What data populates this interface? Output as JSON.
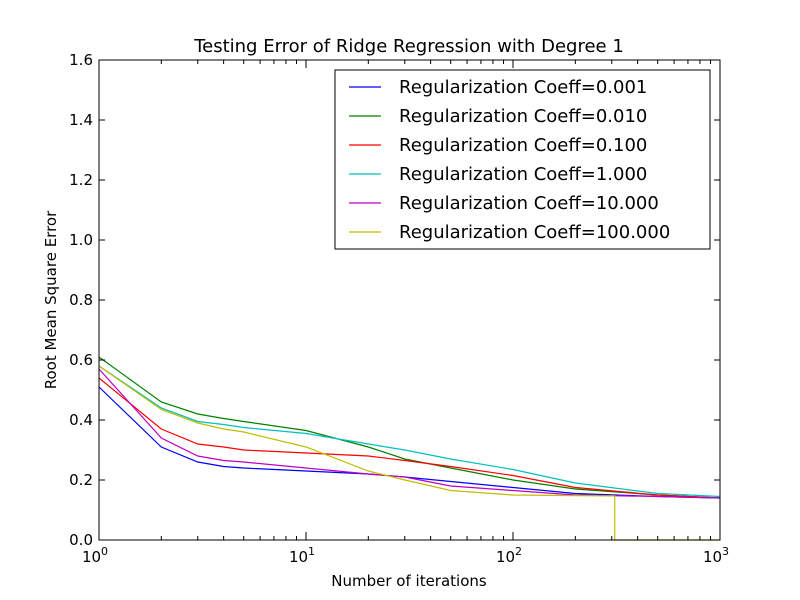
{
  "chart_data": {
    "type": "line",
    "title": "Testing Error of Ridge Regression with Degree 1",
    "xlabel": "Number of iterations",
    "ylabel": "Root Mean Square Error",
    "xscale": "log",
    "xlim": [
      1,
      1000
    ],
    "ylim": [
      0.0,
      1.6
    ],
    "x_ticks": [
      {
        "value": 1,
        "base": "10",
        "exp": "0"
      },
      {
        "value": 10,
        "base": "10",
        "exp": "1"
      },
      {
        "value": 100,
        "base": "10",
        "exp": "2"
      },
      {
        "value": 1000,
        "base": "10",
        "exp": "3"
      }
    ],
    "y_ticks": [
      {
        "value": 0.0,
        "label": "0.0"
      },
      {
        "value": 0.2,
        "label": "0.2"
      },
      {
        "value": 0.4,
        "label": "0.4"
      },
      {
        "value": 0.6,
        "label": "0.6"
      },
      {
        "value": 0.8,
        "label": "0.8"
      },
      {
        "value": 1.0,
        "label": "1.0"
      },
      {
        "value": 1.2,
        "label": "1.2"
      },
      {
        "value": 1.4,
        "label": "1.4"
      },
      {
        "value": 1.6,
        "label": "1.6"
      }
    ],
    "grid": false,
    "legend_position": "top-right",
    "series": [
      {
        "name": "Regularization Coeff=0.001",
        "color": "#0000ff",
        "points": [
          [
            1,
            0.51
          ],
          [
            2,
            0.31
          ],
          [
            3,
            0.26
          ],
          [
            4,
            0.245
          ],
          [
            5,
            0.24
          ],
          [
            10,
            0.23
          ],
          [
            20,
            0.22
          ],
          [
            30,
            0.21
          ],
          [
            50,
            0.195
          ],
          [
            100,
            0.175
          ],
          [
            200,
            0.155
          ],
          [
            500,
            0.145
          ],
          [
            1000,
            0.14
          ]
        ]
      },
      {
        "name": "Regularization Coeff=0.010",
        "color": "#008000",
        "points": [
          [
            1,
            0.61
          ],
          [
            2,
            0.46
          ],
          [
            3,
            0.42
          ],
          [
            4,
            0.405
          ],
          [
            5,
            0.395
          ],
          [
            10,
            0.365
          ],
          [
            20,
            0.31
          ],
          [
            30,
            0.27
          ],
          [
            50,
            0.24
          ],
          [
            100,
            0.2
          ],
          [
            200,
            0.17
          ],
          [
            500,
            0.15
          ],
          [
            1000,
            0.14
          ]
        ]
      },
      {
        "name": "Regularization Coeff=0.100",
        "color": "#ff0000",
        "points": [
          [
            1,
            0.54
          ],
          [
            2,
            0.37
          ],
          [
            3,
            0.32
          ],
          [
            4,
            0.31
          ],
          [
            5,
            0.3
          ],
          [
            10,
            0.29
          ],
          [
            20,
            0.28
          ],
          [
            30,
            0.265
          ],
          [
            50,
            0.245
          ],
          [
            100,
            0.215
          ],
          [
            200,
            0.175
          ],
          [
            500,
            0.15
          ],
          [
            1000,
            0.14
          ]
        ]
      },
      {
        "name": "Regularization Coeff=1.000",
        "color": "#00bfbf",
        "points": [
          [
            1,
            0.58
          ],
          [
            2,
            0.44
          ],
          [
            3,
            0.395
          ],
          [
            4,
            0.385
          ],
          [
            5,
            0.375
          ],
          [
            10,
            0.355
          ],
          [
            20,
            0.32
          ],
          [
            30,
            0.3
          ],
          [
            50,
            0.27
          ],
          [
            100,
            0.235
          ],
          [
            200,
            0.19
          ],
          [
            500,
            0.155
          ],
          [
            1000,
            0.145
          ]
        ]
      },
      {
        "name": "Regularization Coeff=10.000",
        "color": "#bf00bf",
        "points": [
          [
            1,
            0.57
          ],
          [
            2,
            0.34
          ],
          [
            3,
            0.28
          ],
          [
            4,
            0.265
          ],
          [
            5,
            0.26
          ],
          [
            10,
            0.24
          ],
          [
            20,
            0.22
          ],
          [
            30,
            0.21
          ],
          [
            50,
            0.18
          ],
          [
            100,
            0.165
          ],
          [
            200,
            0.15
          ],
          [
            500,
            0.145
          ],
          [
            1000,
            0.14
          ]
        ]
      },
      {
        "name": "Regularization Coeff=100.000",
        "color": "#bfbf00",
        "points": [
          [
            1,
            0.58
          ],
          [
            2,
            0.435
          ],
          [
            3,
            0.39
          ],
          [
            4,
            0.37
          ],
          [
            5,
            0.36
          ],
          [
            10,
            0.31
          ],
          [
            20,
            0.23
          ],
          [
            30,
            0.2
          ],
          [
            50,
            0.165
          ],
          [
            100,
            0.15
          ],
          [
            200,
            0.148
          ],
          [
            310,
            0.147
          ],
          [
            310,
            0.0
          ],
          [
            1000,
            0.0
          ]
        ]
      }
    ]
  }
}
